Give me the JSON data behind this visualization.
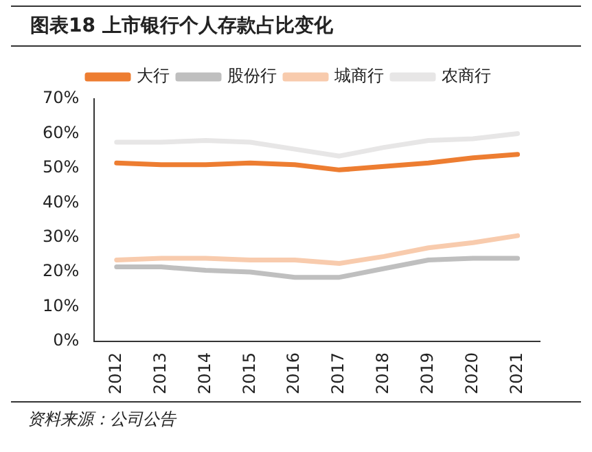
{
  "chart_data": {
    "type": "line",
    "title": "图表18 上市银行个人存款占比变化",
    "categories": [
      "2012",
      "2013",
      "2014",
      "2015",
      "2016",
      "2017",
      "2018",
      "2019",
      "2020",
      "2021"
    ],
    "series": [
      {
        "name": "大行",
        "color": "#ed7d31",
        "values": [
          51.5,
          51,
          51,
          51.5,
          51,
          49.5,
          50.5,
          51.5,
          53,
          54
        ]
      },
      {
        "name": "股份行",
        "color": "#bfbfbf",
        "values": [
          21.5,
          21.5,
          20.5,
          20,
          18.5,
          18.5,
          21,
          23.5,
          24,
          24
        ]
      },
      {
        "name": "城商行",
        "color": "#f8cbad",
        "values": [
          23.5,
          24,
          24,
          23.5,
          23.5,
          22.5,
          24.5,
          27,
          28.5,
          30.5
        ]
      },
      {
        "name": "农商行",
        "color": "#e7e6e6",
        "values": [
          57.5,
          57.5,
          58,
          57.5,
          55.5,
          53.5,
          56,
          58,
          58.5,
          60
        ]
      }
    ],
    "ylim": [
      0,
      70
    ],
    "yticks": [
      {
        "value": 0,
        "label": "0%"
      },
      {
        "value": 10,
        "label": "10%"
      },
      {
        "value": 20,
        "label": "20%"
      },
      {
        "value": 30,
        "label": "30%"
      },
      {
        "value": 40,
        "label": "40%"
      },
      {
        "value": 50,
        "label": "50%"
      },
      {
        "value": 60,
        "label": "60%"
      },
      {
        "value": 70,
        "label": "70%"
      }
    ],
    "grid": false,
    "legend": "top",
    "marker": "none",
    "line_style": "solid",
    "annotations": [
      "资料来源：公司公告"
    ]
  }
}
